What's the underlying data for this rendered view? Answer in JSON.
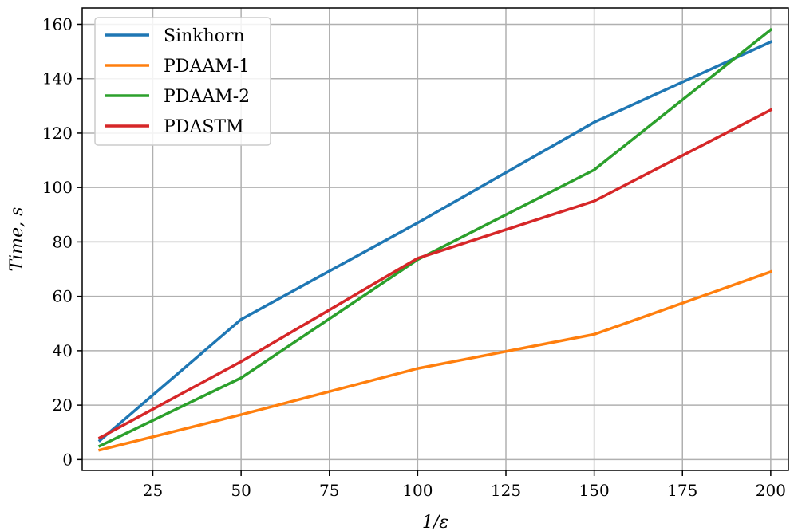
{
  "chart_data": {
    "type": "line",
    "xlabel": "1/ε",
    "ylabel": "Time, s",
    "xlim": [
      5,
      205
    ],
    "ylim": [
      -4,
      166
    ],
    "xticks": [
      25,
      50,
      75,
      100,
      125,
      150,
      175,
      200
    ],
    "yticks": [
      0,
      20,
      40,
      60,
      80,
      100,
      120,
      140,
      160
    ],
    "grid": true,
    "legend_position": "top-left",
    "series": [
      {
        "name": "Sinkhorn",
        "color": "#1f77b4",
        "x": [
          10,
          50,
          100,
          150,
          200
        ],
        "y": [
          7,
          51.5,
          87,
          124,
          153.5
        ]
      },
      {
        "name": "PDAAM-1",
        "color": "#ff7f0e",
        "x": [
          10,
          50,
          100,
          150,
          200
        ],
        "y": [
          3.5,
          16.5,
          33.5,
          46,
          69
        ]
      },
      {
        "name": "PDAAM-2",
        "color": "#2ca02c",
        "x": [
          10,
          50,
          100,
          150,
          200
        ],
        "y": [
          5,
          30,
          73.5,
          106.5,
          158
        ]
      },
      {
        "name": "PDASTM",
        "color": "#d62728",
        "x": [
          10,
          50,
          100,
          150,
          200
        ],
        "y": [
          8,
          36,
          74,
          95,
          128.5
        ]
      }
    ]
  }
}
